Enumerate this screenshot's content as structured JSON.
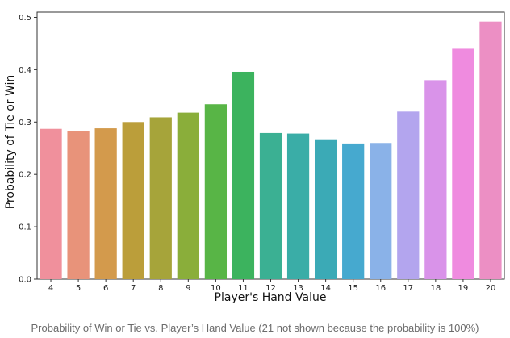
{
  "chart_data": {
    "type": "bar",
    "categories": [
      "4",
      "5",
      "6",
      "7",
      "8",
      "9",
      "10",
      "11",
      "12",
      "13",
      "14",
      "15",
      "16",
      "17",
      "18",
      "19",
      "20"
    ],
    "values": [
      0.287,
      0.283,
      0.288,
      0.3,
      0.309,
      0.318,
      0.334,
      0.396,
      0.279,
      0.278,
      0.267,
      0.259,
      0.26,
      0.32,
      0.38,
      0.44,
      0.492
    ],
    "colors": [
      "#f0909c",
      "#e8937a",
      "#d39a4c",
      "#bb9e3a",
      "#a6a43a",
      "#8aae3a",
      "#58b546",
      "#3cb35e",
      "#3bb093",
      "#3aada7",
      "#3baab6",
      "#46a9cf",
      "#8ab2e8",
      "#b3a5ee",
      "#d993e9",
      "#ef8bdf",
      "#ec8fc4"
    ],
    "title": "",
    "xlabel": "Player's Hand Value",
    "ylabel": "Probability of Tie or Win",
    "ylim": [
      0,
      0.51
    ],
    "yticks": [
      "0.0",
      "0.1",
      "0.2",
      "0.3",
      "0.4",
      "0.5"
    ],
    "grid": false,
    "legend": "none"
  },
  "caption": "Probability of Win or Tie vs. Player’s Hand Value (21 not shown because the probability is 100%)"
}
